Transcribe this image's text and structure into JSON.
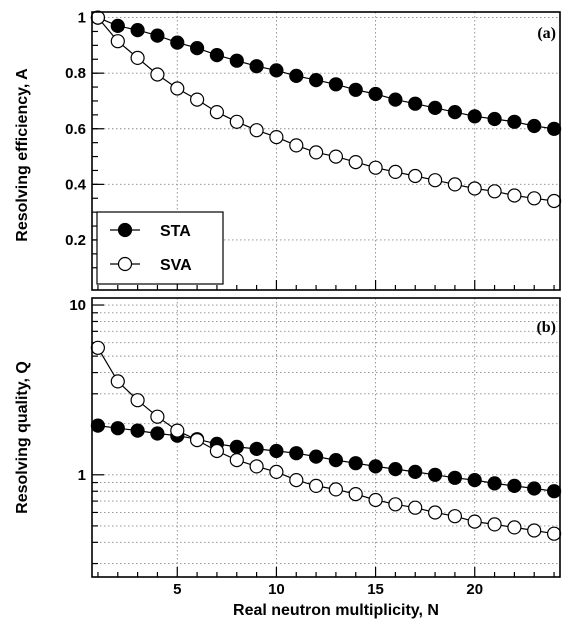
{
  "chart_data": [
    {
      "type": "line",
      "panel_label": "(a)",
      "ylabel": "Resolving efficiency, A",
      "xlim": [
        0.7,
        24.3
      ],
      "ylim": [
        0.02,
        1.02
      ],
      "yscale": "linear",
      "yticks": [
        0.2,
        0.4,
        0.6,
        0.8,
        1
      ],
      "ytick_labels": [
        "0.2",
        "0.4",
        "0.6",
        "0.8",
        "1"
      ],
      "grid": true,
      "legend": {
        "position": "bottom-left",
        "entries": [
          "STA",
          "SVA"
        ]
      },
      "x": [
        1,
        2,
        3,
        4,
        5,
        6,
        7,
        8,
        9,
        10,
        11,
        12,
        13,
        14,
        15,
        16,
        17,
        18,
        19,
        20,
        21,
        22,
        23,
        24
      ],
      "series": [
        {
          "name": "STA",
          "marker": "filled-circle",
          "values": [
            1.0,
            0.97,
            0.955,
            0.935,
            0.91,
            0.89,
            0.865,
            0.845,
            0.825,
            0.81,
            0.79,
            0.775,
            0.76,
            0.74,
            0.725,
            0.705,
            0.69,
            0.675,
            0.66,
            0.645,
            0.635,
            0.625,
            0.61,
            0.6
          ]
        },
        {
          "name": "SVA",
          "marker": "open-circle",
          "values": [
            1.0,
            0.915,
            0.855,
            0.795,
            0.745,
            0.705,
            0.66,
            0.625,
            0.595,
            0.57,
            0.54,
            0.515,
            0.5,
            0.48,
            0.46,
            0.445,
            0.43,
            0.415,
            0.4,
            0.385,
            0.375,
            0.36,
            0.35,
            0.34
          ]
        }
      ]
    },
    {
      "type": "line",
      "panel_label": "(b)",
      "ylabel": "Resolving quality, Q",
      "xlabel": "Real neutron multiplicity, N",
      "xlim": [
        0.7,
        24.3
      ],
      "ylim": [
        0.25,
        11
      ],
      "yscale": "log",
      "yticks": [
        1,
        10
      ],
      "ytick_labels": [
        "1",
        "10"
      ],
      "xticks": [
        5,
        10,
        15,
        20
      ],
      "xtick_labels": [
        "5",
        "10",
        "15",
        "20"
      ],
      "grid": true,
      "x": [
        1,
        2,
        3,
        4,
        5,
        6,
        7,
        8,
        9,
        10,
        11,
        12,
        13,
        14,
        15,
        16,
        17,
        18,
        19,
        20,
        21,
        22,
        23,
        24
      ],
      "series": [
        {
          "name": "STA",
          "marker": "filled-circle",
          "values": [
            1.95,
            1.88,
            1.82,
            1.75,
            1.7,
            1.62,
            1.52,
            1.46,
            1.42,
            1.38,
            1.34,
            1.28,
            1.22,
            1.17,
            1.12,
            1.08,
            1.04,
            1.0,
            0.96,
            0.93,
            0.89,
            0.86,
            0.83,
            0.8
          ]
        },
        {
          "name": "SVA",
          "marker": "open-circle",
          "values": [
            5.6,
            3.55,
            2.75,
            2.2,
            1.82,
            1.6,
            1.38,
            1.22,
            1.12,
            1.04,
            0.93,
            0.86,
            0.82,
            0.77,
            0.71,
            0.67,
            0.64,
            0.6,
            0.57,
            0.53,
            0.51,
            0.49,
            0.47,
            0.45
          ]
        }
      ]
    }
  ]
}
